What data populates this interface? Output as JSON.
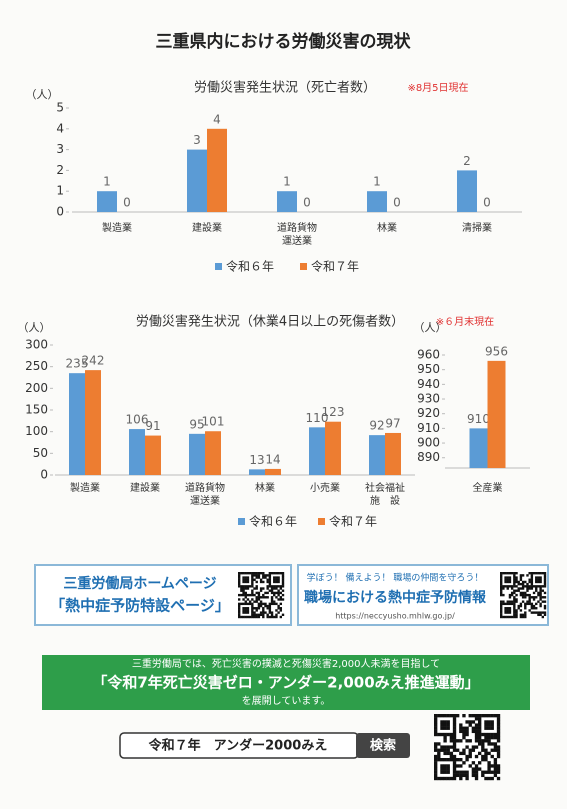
{
  "title": "三重県内における労働災害の現状",
  "chart_data": [
    {
      "type": "bar",
      "title": "労働災害発生状況（死亡者数）",
      "note": "※8月5日現在",
      "unit": "（人）",
      "categories": [
        "製造業",
        "建設業",
        "道路貨物\n運送業",
        "林業",
        "清掃業"
      ],
      "series": [
        {
          "name": "令和６年",
          "color": "#5b9bd5",
          "values": [
            1,
            3,
            1,
            1,
            2
          ]
        },
        {
          "name": "令和７年",
          "color": "#ed7d31",
          "values": [
            0,
            4,
            0,
            0,
            0
          ]
        }
      ],
      "ylim": [
        0,
        5
      ],
      "yticks": [
        0,
        1,
        2,
        3,
        4,
        5
      ]
    },
    {
      "type": "bar",
      "title": "労働災害発生状況（休業4日以上の死傷者数）",
      "note": "※６月末現在",
      "unit": "（人）",
      "categories": [
        "製造業",
        "建設業",
        "道路貨物\n運送業",
        "林業",
        "小売業",
        "社会福祉\n施　設"
      ],
      "series": [
        {
          "name": "令和６年",
          "color": "#5b9bd5",
          "values": [
            235,
            106,
            95,
            13,
            110,
            92
          ]
        },
        {
          "name": "令和７年",
          "color": "#ed7d31",
          "values": [
            242,
            91,
            101,
            14,
            123,
            97
          ]
        }
      ],
      "ylim": [
        0,
        300
      ],
      "yticks": [
        0,
        50,
        100,
        150,
        200,
        250,
        300
      ]
    },
    {
      "type": "bar",
      "unit": "（人）",
      "categories": [
        "全産業"
      ],
      "series": [
        {
          "color": "#5b9bd5",
          "values": [
            910
          ]
        },
        {
          "color": "#ed7d31",
          "values": [
            956
          ]
        }
      ],
      "ylim": [
        883,
        960
      ],
      "yticks": [
        890,
        900,
        910,
        920,
        930,
        940,
        950,
        960
      ]
    }
  ],
  "banners": [
    {
      "lines": [
        "三重労働局ホームページ",
        "「熱中症予防特設ページ」"
      ]
    },
    {
      "lines": [
        "学ぼう！ 備えよう！ 職場の仲間を守ろう！",
        "職場における熱中症予防情報",
        "https://neccyusho.mhlw.go.jp/"
      ]
    }
  ],
  "campaign": {
    "lines": [
      "三重労働局では、死亡災害の撲滅と死傷災害2,000人未満を目指して",
      "「令和7年死亡災害ゼロ・アンダー2,000みえ推進運動」",
      "を展開しています。"
    ]
  },
  "search": {
    "query": "令和７年　アンダー2000みえ",
    "button": "検索"
  }
}
